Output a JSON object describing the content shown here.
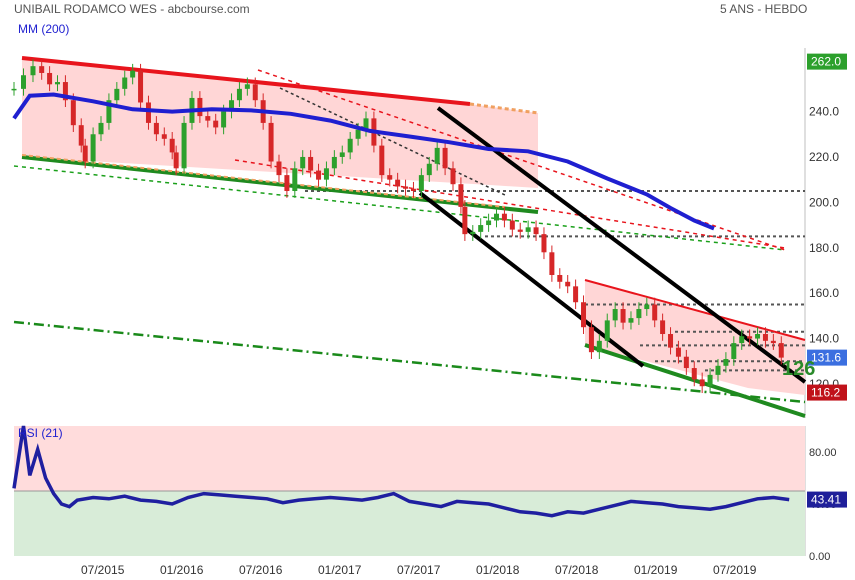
{
  "header": {
    "title": "UNIBAIL RODAMCO WES - abcbourse.com",
    "timeframe": "5 ANS - HEBDO",
    "ma_label": "MM (200)",
    "rsi_label": "RSI (21)",
    "partial_label": "126"
  },
  "colors": {
    "bull": "#2ca02c",
    "bear": "#d62728",
    "ma": "#1f1fd0",
    "rsi": "#1f1fa0",
    "resistance": "#e8141c",
    "support": "#1f8a1f",
    "channel": "#000000",
    "zone_fill": "#ffd6d6",
    "rsi_upper_fill": "#ffdcdc",
    "rsi_lower_fill": "#d8ecd8"
  },
  "chart_data": [
    {
      "type": "candlestick",
      "yticks": [
        120,
        140,
        160,
        180,
        200,
        220,
        240
      ],
      "ylim": [
        105,
        268
      ],
      "x": [
        "07/2015",
        "01/2016",
        "07/2016",
        "01/2017",
        "07/2017",
        "01/2018",
        "07/2018",
        "01/2019",
        "07/2019"
      ],
      "price_tags": [
        {
          "label": "262.0",
          "value": 262.0,
          "color": "#2ca02c"
        },
        {
          "label": "131.6",
          "value": 131.6,
          "color": "#3b6fe0"
        },
        {
          "label": "116.2",
          "value": 116.2,
          "color": "#c0121a"
        }
      ],
      "series": [
        {
          "name": "MM (200)",
          "values": [
            [
              0.0,
              237.0
            ],
            [
              0.02,
              247.0
            ],
            [
              0.05,
              247.5
            ],
            [
              0.1,
              244.5
            ],
            [
              0.15,
              241.0
            ],
            [
              0.2,
              240.0
            ],
            [
              0.25,
              241.0
            ],
            [
              0.3,
              240.5
            ],
            [
              0.35,
              239.0
            ],
            [
              0.4,
              236.0
            ],
            [
              0.45,
              231.5
            ],
            [
              0.5,
              229.0
            ],
            [
              0.55,
              226.5
            ],
            [
              0.6,
              223.5
            ],
            [
              0.65,
              222.5
            ],
            [
              0.7,
              218.0
            ],
            [
              0.75,
              210.5
            ],
            [
              0.8,
              203.5
            ],
            [
              0.83,
              197.5
            ],
            [
              0.86,
              192.0
            ],
            [
              0.885,
              188.5
            ]
          ]
        },
        {
          "name": "price",
          "values": [
            [
              0.0,
              250
            ],
            [
              0.012,
              256
            ],
            [
              0.024,
              260
            ],
            [
              0.035,
              257
            ],
            [
              0.045,
              252
            ],
            [
              0.055,
              253
            ],
            [
              0.065,
              245
            ],
            [
              0.075,
              234
            ],
            [
              0.085,
              225
            ],
            [
              0.09,
              218
            ],
            [
              0.1,
              230
            ],
            [
              0.11,
              235
            ],
            [
              0.12,
              245
            ],
            [
              0.13,
              250
            ],
            [
              0.14,
              255
            ],
            [
              0.15,
              258
            ],
            [
              0.16,
              244
            ],
            [
              0.17,
              235
            ],
            [
              0.18,
              230
            ],
            [
              0.19,
              228
            ],
            [
              0.2,
              222
            ],
            [
              0.205,
              215
            ],
            [
              0.215,
              235
            ],
            [
              0.225,
              246
            ],
            [
              0.235,
              238
            ],
            [
              0.245,
              236
            ],
            [
              0.255,
              233
            ],
            [
              0.265,
              240
            ],
            [
              0.275,
              245
            ],
            [
              0.285,
              250
            ],
            [
              0.295,
              252
            ],
            [
              0.305,
              245
            ],
            [
              0.315,
              235
            ],
            [
              0.325,
              218
            ],
            [
              0.335,
              212
            ],
            [
              0.345,
              205
            ],
            [
              0.355,
              215
            ],
            [
              0.365,
              220
            ],
            [
              0.375,
              214
            ],
            [
              0.385,
              210
            ],
            [
              0.395,
              215
            ],
            [
              0.405,
              220
            ],
            [
              0.415,
              222
            ],
            [
              0.425,
              228
            ],
            [
              0.435,
              232
            ],
            [
              0.445,
              237
            ],
            [
              0.455,
              225
            ],
            [
              0.465,
              212
            ],
            [
              0.475,
              210
            ],
            [
              0.485,
              207
            ],
            [
              0.495,
              206
            ],
            [
              0.505,
              205
            ],
            [
              0.515,
              212
            ],
            [
              0.525,
              217
            ],
            [
              0.535,
              224
            ],
            [
              0.545,
              215
            ],
            [
              0.555,
              208
            ],
            [
              0.565,
              198
            ],
            [
              0.57,
              186
            ],
            [
              0.58,
              187
            ],
            [
              0.59,
              190
            ],
            [
              0.6,
              192
            ],
            [
              0.61,
              195
            ],
            [
              0.62,
              192
            ],
            [
              0.63,
              188
            ],
            [
              0.64,
              187
            ],
            [
              0.65,
              189
            ],
            [
              0.66,
              186
            ],
            [
              0.67,
              178
            ],
            [
              0.68,
              168
            ],
            [
              0.69,
              165
            ],
            [
              0.7,
              163
            ],
            [
              0.71,
              156
            ],
            [
              0.72,
              145
            ],
            [
              0.73,
              134
            ],
            [
              0.74,
              139
            ],
            [
              0.75,
              148
            ],
            [
              0.76,
              153
            ],
            [
              0.77,
              147
            ],
            [
              0.78,
              149
            ],
            [
              0.79,
              153
            ],
            [
              0.8,
              155
            ],
            [
              0.81,
              148
            ],
            [
              0.82,
              142
            ],
            [
              0.83,
              136
            ],
            [
              0.84,
              132
            ],
            [
              0.85,
              127
            ],
            [
              0.86,
              122
            ],
            [
              0.87,
              119
            ],
            [
              0.88,
              124
            ],
            [
              0.89,
              128
            ],
            [
              0.9,
              131
            ],
            [
              0.91,
              138
            ],
            [
              0.92,
              141
            ],
            [
              0.93,
              140
            ],
            [
              0.94,
              142
            ],
            [
              0.95,
              139
            ],
            [
              0.96,
              138
            ],
            [
              0.97,
              131.6
            ]
          ]
        }
      ],
      "annotations": {
        "support_levels": [
          205,
          185,
          155,
          143,
          137,
          130,
          126
        ],
        "channel_top": [
          [
            0.0,
            258
          ],
          [
            0.55,
            240
          ]
        ],
        "channel_bottom": [
          [
            0.0,
            218
          ],
          [
            0.6,
            196
          ]
        ],
        "lower_support": [
          [
            0.0,
            215
          ],
          [
            0.95,
            110
          ]
        ],
        "long_term_support": [
          [
            0.0,
            150
          ],
          [
            0.95,
            115
          ]
        ]
      }
    },
    {
      "type": "line",
      "ylabel": "RSI (21)",
      "yticks": [
        0.0,
        40.0,
        80.0
      ],
      "ylim": [
        0,
        100
      ],
      "value_tag": "43.41",
      "series": [
        {
          "name": "RSI (21)",
          "values": [
            [
              0.0,
              52
            ],
            [
              0.012,
              100
            ],
            [
              0.02,
              62
            ],
            [
              0.03,
              82
            ],
            [
              0.04,
              60
            ],
            [
              0.05,
              48
            ],
            [
              0.06,
              40
            ],
            [
              0.07,
              38
            ],
            [
              0.08,
              43
            ],
            [
              0.1,
              45
            ],
            [
              0.12,
              44
            ],
            [
              0.14,
              46
            ],
            [
              0.16,
              43
            ],
            [
              0.18,
              42
            ],
            [
              0.2,
              40
            ],
            [
              0.22,
              45
            ],
            [
              0.24,
              48
            ],
            [
              0.26,
              47
            ],
            [
              0.28,
              46
            ],
            [
              0.3,
              45
            ],
            [
              0.32,
              44
            ],
            [
              0.34,
              41
            ],
            [
              0.36,
              43
            ],
            [
              0.38,
              44
            ],
            [
              0.4,
              45
            ],
            [
              0.42,
              44
            ],
            [
              0.44,
              43
            ],
            [
              0.46,
              45
            ],
            [
              0.48,
              48
            ],
            [
              0.5,
              42
            ],
            [
              0.52,
              40
            ],
            [
              0.54,
              38
            ],
            [
              0.56,
              42
            ],
            [
              0.58,
              41
            ],
            [
              0.6,
              40
            ],
            [
              0.62,
              37
            ],
            [
              0.64,
              34
            ],
            [
              0.66,
              33
            ],
            [
              0.68,
              31
            ],
            [
              0.7,
              34
            ],
            [
              0.72,
              33
            ],
            [
              0.74,
              36
            ],
            [
              0.76,
              39
            ],
            [
              0.78,
              42
            ],
            [
              0.8,
              41
            ],
            [
              0.82,
              40
            ],
            [
              0.84,
              38
            ],
            [
              0.86,
              37
            ],
            [
              0.88,
              36
            ],
            [
              0.9,
              38
            ],
            [
              0.92,
              41
            ],
            [
              0.94,
              44
            ],
            [
              0.96,
              45
            ],
            [
              0.98,
              43.41
            ]
          ]
        }
      ]
    }
  ]
}
